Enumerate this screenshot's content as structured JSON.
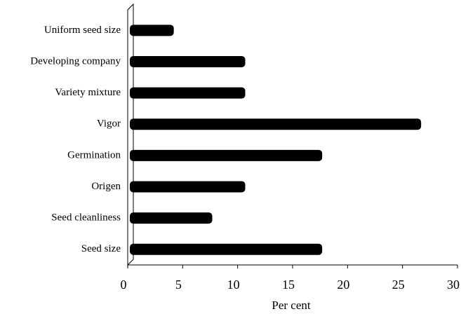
{
  "chart_data": {
    "type": "bar",
    "orientation": "horizontal",
    "categories": [
      "Uniform seed size",
      "Developing company",
      "Variety mixture",
      "Vigor",
      "Germination",
      "Origen",
      "Seed cleanliness",
      "Seed size"
    ],
    "values": [
      4,
      10.5,
      10.5,
      26.5,
      17.5,
      10.5,
      7.5,
      17.5
    ],
    "color": "#000000",
    "xlabel": "Per cent",
    "xlim": [
      0,
      30
    ],
    "xticks": [
      0,
      5,
      10,
      15,
      20,
      25,
      30
    ],
    "grid": false
  }
}
